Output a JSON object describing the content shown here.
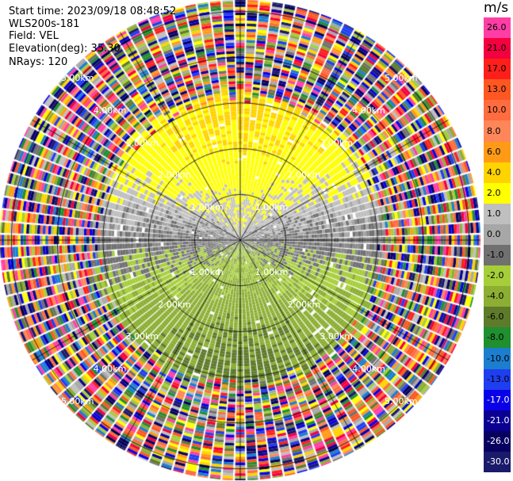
{
  "info": {
    "start_time": "Start time: 2023/09/18 08:48:52",
    "instrument": "WLS200s-181",
    "field": "Field: VEL",
    "elevation": "Elevation(deg): 35.30",
    "nrays": "NRays: 120"
  },
  "colorbar": {
    "unit": "m/s",
    "bins": [
      {
        "label": "26.0",
        "color": "#ff3ea5"
      },
      {
        "label": "21.0",
        "color": "#f3003f"
      },
      {
        "label": "17.0",
        "color": "#fe1f1b"
      },
      {
        "label": "13.0",
        "color": "#fe5722"
      },
      {
        "label": "10.0",
        "color": "#ff6c3f"
      },
      {
        "label": "8.0",
        "color": "#ff8659"
      },
      {
        "label": "6.0",
        "color": "#ff9a17"
      },
      {
        "label": "4.0",
        "color": "#ffd300"
      },
      {
        "label": "2.0",
        "color": "#ffff00"
      },
      {
        "label": "1.0",
        "color": "#bfbfbf"
      },
      {
        "label": "0.0",
        "color": "#a7a7a7"
      },
      {
        "label": "-1.0",
        "color": "#707070"
      },
      {
        "label": "-2.0",
        "color": "#a6ce39"
      },
      {
        "label": "-4.0",
        "color": "#8cae33"
      },
      {
        "label": "-6.0",
        "color": "#5e7b2b"
      },
      {
        "label": "-8.0",
        "color": "#1f8f2f"
      },
      {
        "label": "-10.0",
        "color": "#1c7ecf"
      },
      {
        "label": "-13.0",
        "color": "#1f3ef0"
      },
      {
        "label": "-17.0",
        "color": "#0a00e8"
      },
      {
        "label": "-21.0",
        "color": "#0a0092"
      },
      {
        "label": "-26.0",
        "color": "#080060"
      },
      {
        "label": "-30.0",
        "color": "#1a1a6a"
      }
    ]
  },
  "chart_data": {
    "type": "heatmap",
    "projection": "polar-ppi",
    "field": "VEL",
    "units": "m/s",
    "n_rays": 120,
    "elevation_deg": 35.3,
    "range_rings_km": [
      1.0,
      2.0,
      3.0,
      4.0,
      5.0
    ],
    "ring_labels": [
      "1.00km",
      "2.00km",
      "3.00km",
      "4.00km",
      "5.00km"
    ],
    "max_range_km": 5.25,
    "spokes_deg": [
      0,
      30,
      60,
      90,
      120,
      150,
      180,
      210,
      240,
      270,
      300,
      330
    ],
    "pattern": {
      "toward_sector_az_deg": 0,
      "away_sector_az_deg": 180,
      "toward_range_km": [
        0.0,
        2.8
      ],
      "away_range_km": [
        0.0,
        3.2
      ],
      "noise_range_km": [
        3.3,
        5.25
      ]
    }
  }
}
